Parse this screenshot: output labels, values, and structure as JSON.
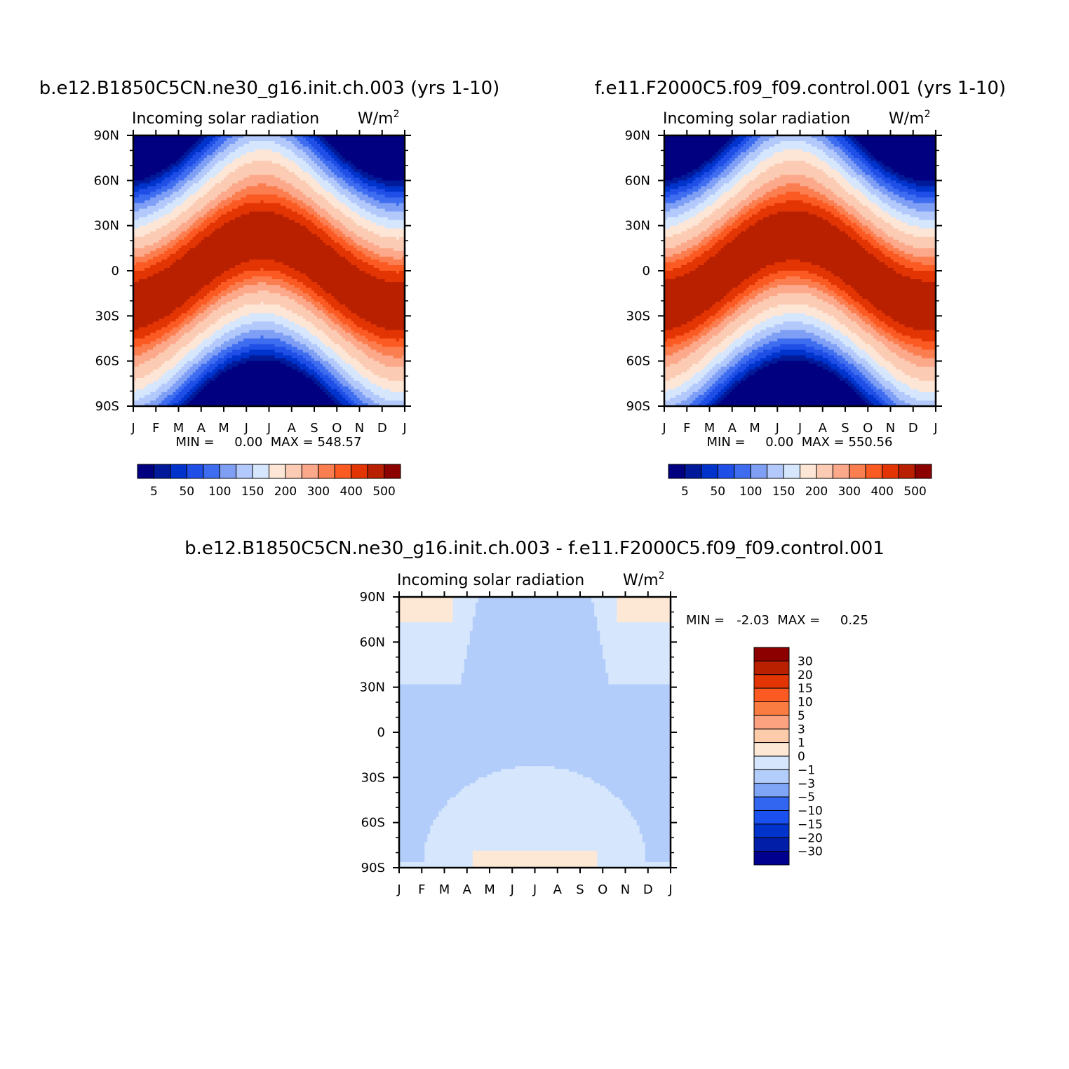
{
  "colors": {
    "abs_scale": [
      "#000080",
      "#001a99",
      "#0033cc",
      "#1f4fe6",
      "#3f6df0",
      "#7f9ff5",
      "#b3c9fb",
      "#d6e7fd",
      "#fde6d6",
      "#fccbb3",
      "#fca88a",
      "#fb7e50",
      "#fb5a22",
      "#e33504",
      "#b92000",
      "#8c0000"
    ],
    "diff_scale": [
      "#00008f",
      "#001ea8",
      "#0033cc",
      "#1a50f0",
      "#3366f0",
      "#7fa5f7",
      "#b3cdfb",
      "#d6e7fd",
      "#fde8d6",
      "#fccbaa",
      "#fca280",
      "#fb7c40",
      "#fb5a22",
      "#e33504",
      "#b92000",
      "#8c0000"
    ]
  },
  "months": [
    "J",
    "F",
    "M",
    "A",
    "M",
    "J",
    "J",
    "A",
    "S",
    "O",
    "N",
    "D",
    "J"
  ],
  "lat_labels": [
    "90N",
    "60N",
    "30N",
    "0",
    "30S",
    "60S",
    "90S"
  ],
  "panels": [
    {
      "title": "b.e12.B1850C5CN.ne30_g16.init.ch.003 (yrs 1-10)",
      "variable": "Incoming solar radiation",
      "units": "W/m",
      "units_sup": "2",
      "stats": "MIN =     0.00  MAX = 548.57"
    },
    {
      "title": "f.e11.F2000C5.f09_f09.control.001 (yrs 1-10)",
      "variable": "Incoming solar radiation",
      "units": "W/m",
      "units_sup": "2",
      "stats": "MIN =     0.00  MAX = 550.56"
    },
    {
      "title": "b.e12.B1850C5CN.ne30_g16.init.ch.003 - f.e11.F2000C5.f09_f09.control.001",
      "variable": "Incoming solar radiation",
      "units": "W/m",
      "units_sup": "2",
      "stats": "MIN =   -2.03  MAX =     0.25"
    }
  ],
  "abs_colorbar_labels": [
    "5",
    "50",
    "100",
    "150",
    "200",
    "300",
    "400",
    "500"
  ],
  "diff_colorbar_labels": [
    "30",
    "20",
    "15",
    "10",
    "5",
    "3",
    "1",
    "0",
    "-1",
    "-3",
    "-5",
    "-10",
    "-15",
    "-20",
    "-30"
  ],
  "chart_data": [
    {
      "type": "heatmap",
      "title": "b.e12.B1850C5CN.ne30_g16.init.ch.003 (yrs 1-10)",
      "subtitle": "Incoming solar radiation",
      "units": "W/m2",
      "x": [
        "J",
        "F",
        "M",
        "A",
        "M",
        "J",
        "J",
        "A",
        "S",
        "O",
        "N",
        "D",
        "J"
      ],
      "y": [
        "90N",
        "60N",
        "30N",
        "0",
        "30S",
        "60S",
        "90S"
      ],
      "min": 0.0,
      "max": 548.57
    },
    {
      "type": "heatmap",
      "title": "f.e11.F2000C5.f09_f09.control.001 (yrs 1-10)",
      "subtitle": "Incoming solar radiation",
      "units": "W/m2",
      "x": [
        "J",
        "F",
        "M",
        "A",
        "M",
        "J",
        "J",
        "A",
        "S",
        "O",
        "N",
        "D",
        "J"
      ],
      "y": [
        "90N",
        "60N",
        "30N",
        "0",
        "30S",
        "60S",
        "90S"
      ],
      "min": 0.0,
      "max": 550.56
    },
    {
      "type": "heatmap",
      "title": "b.e12.B1850C5CN.ne30_g16.init.ch.003 - f.e11.F2000C5.f09_f09.control.001",
      "subtitle": "Incoming solar radiation",
      "units": "W/m2",
      "x": [
        "J",
        "F",
        "M",
        "A",
        "M",
        "J",
        "J",
        "A",
        "S",
        "O",
        "N",
        "D",
        "J"
      ],
      "y": [
        "90N",
        "60N",
        "30N",
        "0",
        "30S",
        "60S",
        "90S"
      ],
      "min": -2.03,
      "max": 0.25
    }
  ]
}
